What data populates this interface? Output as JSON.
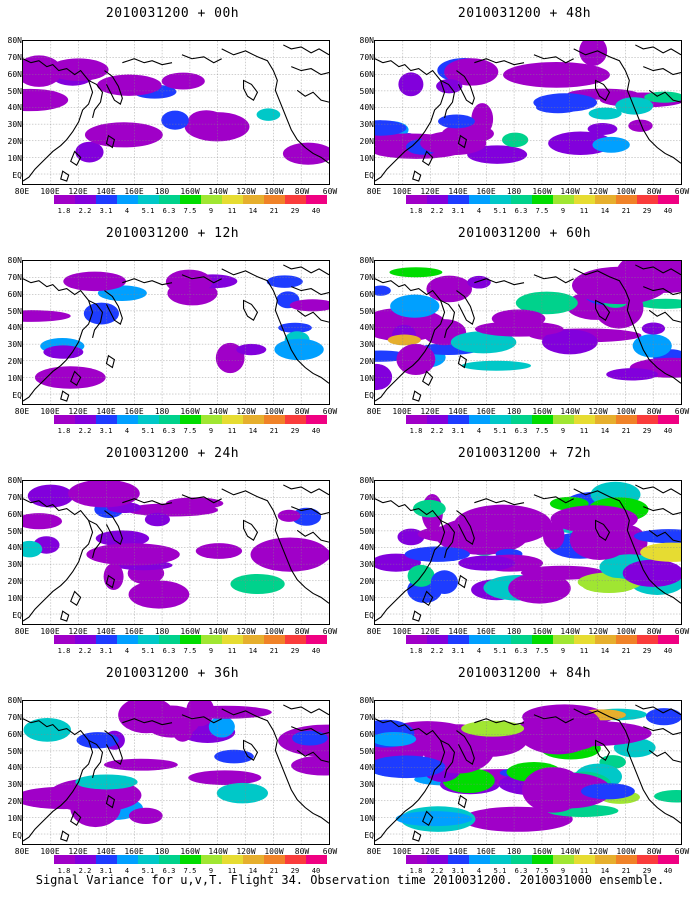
{
  "panels": [
    {
      "title": "2010031200 + 00h",
      "intensity": 0.15
    },
    {
      "title": "2010031200 + 48h",
      "intensity": 0.55
    },
    {
      "title": "2010031200 + 12h",
      "intensity": 0.25
    },
    {
      "title": "2010031200 + 60h",
      "intensity": 0.65
    },
    {
      "title": "2010031200 + 24h",
      "intensity": 0.35
    },
    {
      "title": "2010031200 + 72h",
      "intensity": 0.75
    },
    {
      "title": "2010031200 + 36h",
      "intensity": 0.45
    },
    {
      "title": "2010031200 + 84h",
      "intensity": 0.9
    }
  ],
  "lat_labels": [
    "80N",
    "70N",
    "60N",
    "50N",
    "40N",
    "30N",
    "20N",
    "10N",
    "EQ"
  ],
  "lon_labels": [
    "80E",
    "100E",
    "120E",
    "140E",
    "160E",
    "180",
    "160W",
    "140W",
    "120W",
    "100W",
    "80W",
    "60W"
  ],
  "colorbar": {
    "labels": [
      "1.8",
      "2.2",
      "3.1",
      "4",
      "5.1",
      "6.3",
      "7.5",
      "9",
      "11",
      "14",
      "21",
      "29",
      "40"
    ],
    "colors": [
      "#a000c8",
      "#8200dc",
      "#1e3cff",
      "#00a0ff",
      "#00c8c8",
      "#00d28c",
      "#00dc00",
      "#a0e632",
      "#e6dc32",
      "#e6af2d",
      "#f08228",
      "#fa3c3c",
      "#f00082"
    ]
  },
  "footer": "Signal Variance for u,v,T. Flight 34. Observation time 2010031200. 2010031000 ensemble."
}
